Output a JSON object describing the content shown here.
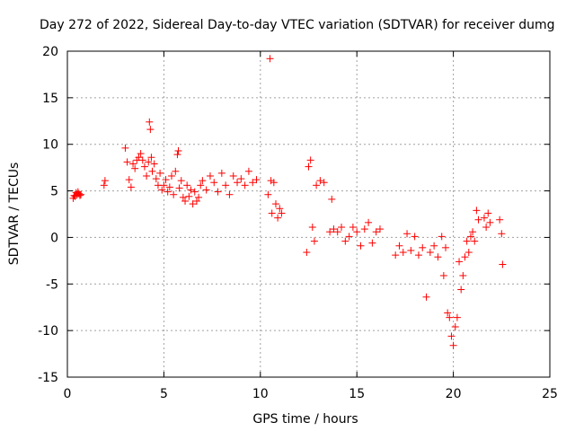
{
  "chart_data": {
    "type": "scatter",
    "title": "Day 272 of 2022, Sidereal Day-to-day VTEC variation (SDTVAR) for receiver dumg",
    "xlabel": "GPS time / hours",
    "ylabel": "SDTVAR / TECUs",
    "xlim": [
      0,
      25
    ],
    "ylim": [
      -15,
      20
    ],
    "xticks": [
      0,
      5,
      10,
      15,
      20,
      25
    ],
    "yticks": [
      -15,
      -10,
      -5,
      0,
      5,
      10,
      15,
      20
    ],
    "xtick_labels": [
      "0",
      "5",
      "10",
      "15",
      "20",
      "25"
    ],
    "ytick_labels": [
      "-15",
      "-10",
      "-5",
      "0",
      "5",
      "10",
      "15",
      "20"
    ],
    "grid": true,
    "marker": "+",
    "color": "#ff0000",
    "series": [
      {
        "name": "SDTVAR",
        "x": [
          0.3,
          0.35,
          0.4,
          0.45,
          0.5,
          0.55,
          0.6,
          0.65,
          0.7,
          1.9,
          1.95,
          3.0,
          3.1,
          3.2,
          3.3,
          3.4,
          3.5,
          3.6,
          3.7,
          3.8,
          3.9,
          4.0,
          4.1,
          4.2,
          4.25,
          4.3,
          4.35,
          4.4,
          4.5,
          4.6,
          4.7,
          4.8,
          4.9,
          5.0,
          5.1,
          5.2,
          5.3,
          5.4,
          5.5,
          5.6,
          5.7,
          5.75,
          5.8,
          5.9,
          6.0,
          6.1,
          6.2,
          6.3,
          6.4,
          6.5,
          6.6,
          6.7,
          6.8,
          6.9,
          7.0,
          7.2,
          7.4,
          7.6,
          7.8,
          8.0,
          8.2,
          8.4,
          8.6,
          8.8,
          9.0,
          9.2,
          9.4,
          9.6,
          9.8,
          10.4,
          10.5,
          10.55,
          10.6,
          10.7,
          10.8,
          10.9,
          11.0,
          11.1,
          12.4,
          12.5,
          12.6,
          12.7,
          12.8,
          12.9,
          13.1,
          13.3,
          13.6,
          13.7,
          13.8,
          14.0,
          14.2,
          14.4,
          14.6,
          14.8,
          15.0,
          15.2,
          15.4,
          15.6,
          15.8,
          16.0,
          16.2,
          17.0,
          17.2,
          17.4,
          17.6,
          17.8,
          18.0,
          18.2,
          18.4,
          18.6,
          18.8,
          19.0,
          19.2,
          19.4,
          19.5,
          19.6,
          19.7,
          19.8,
          19.9,
          20.0,
          20.1,
          20.2,
          20.3,
          20.4,
          20.5,
          20.6,
          20.7,
          20.8,
          20.9,
          21.0,
          21.1,
          21.2,
          21.3,
          21.6,
          21.7,
          21.8,
          21.9,
          22.4,
          22.5,
          22.55
        ],
        "y": [
          4.2,
          4.5,
          4.4,
          4.8,
          4.6,
          4.9,
          4.7,
          4.5,
          4.6,
          5.6,
          6.1,
          9.6,
          8.1,
          6.2,
          5.4,
          7.9,
          7.4,
          8.3,
          8.6,
          9.0,
          8.3,
          7.6,
          6.6,
          8.1,
          12.4,
          11.6,
          8.6,
          7.1,
          7.9,
          6.3,
          5.6,
          6.9,
          5.1,
          5.6,
          6.2,
          4.9,
          5.4,
          6.6,
          4.6,
          7.1,
          8.9,
          9.3,
          5.3,
          6.1,
          4.3,
          3.9,
          5.6,
          4.4,
          5.1,
          3.6,
          4.9,
          3.9,
          4.3,
          5.6,
          6.1,
          5.1,
          6.6,
          5.9,
          4.9,
          6.9,
          5.6,
          4.6,
          6.6,
          5.9,
          6.3,
          5.6,
          7.1,
          5.9,
          6.2,
          4.6,
          19.2,
          6.1,
          2.6,
          5.9,
          3.6,
          2.1,
          3.1,
          2.6,
          -1.6,
          7.6,
          8.3,
          1.1,
          -0.4,
          5.6,
          6.1,
          5.9,
          0.6,
          4.1,
          0.9,
          0.6,
          1.1,
          -0.4,
          0.1,
          1.1,
          0.6,
          -0.9,
          0.9,
          1.6,
          -0.6,
          0.6,
          0.9,
          -1.9,
          -0.9,
          -1.6,
          0.4,
          -1.4,
          0.1,
          -1.9,
          -1.1,
          -6.4,
          -1.6,
          -0.9,
          -2.1,
          0.1,
          -4.1,
          -1.1,
          -8.1,
          -8.6,
          -10.6,
          -11.6,
          -9.6,
          -8.6,
          -2.6,
          -5.6,
          -4.1,
          -2.1,
          -0.4,
          -1.6,
          0.1,
          0.6,
          -0.4,
          2.9,
          1.9,
          2.1,
          1.1,
          2.6,
          1.6,
          1.9,
          0.4,
          -2.9
        ]
      }
    ]
  }
}
